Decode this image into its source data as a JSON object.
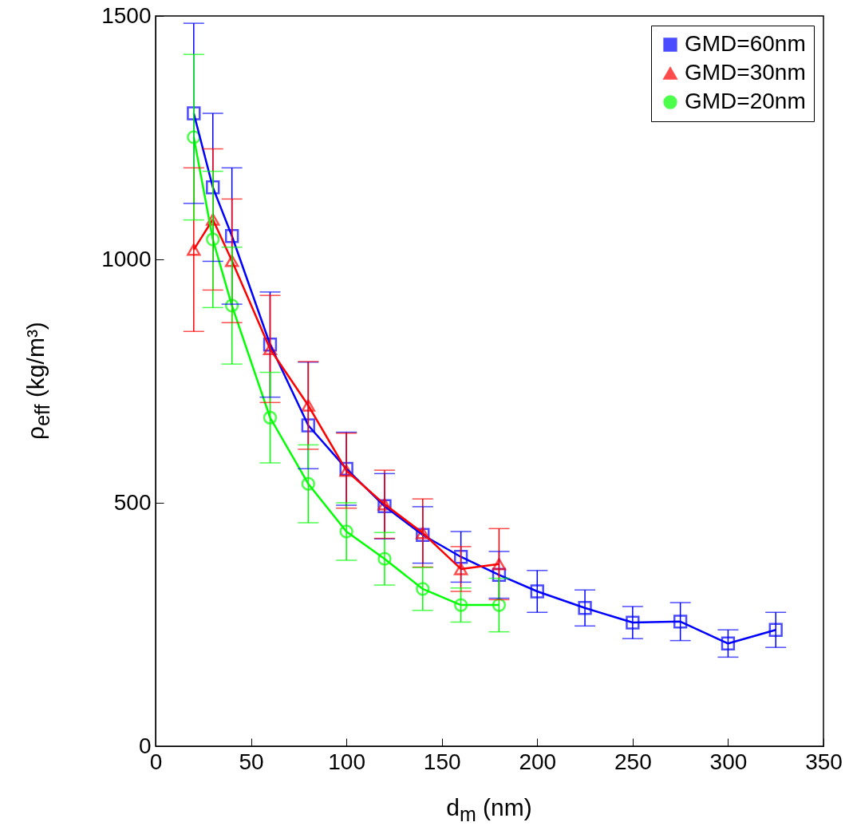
{
  "chart_data": {
    "type": "line",
    "xlabel": "d$_{m}$ (nm)",
    "ylabel": "ρ$_{eff}$ (kg/m³)",
    "xlim": [
      0,
      350
    ],
    "xticks": [
      0,
      50,
      100,
      150,
      200,
      250,
      300,
      350
    ],
    "ylim": [
      0,
      1500
    ],
    "yticks": [
      0,
      500,
      1000,
      1500
    ],
    "legend": "top right",
    "grid": false,
    "series": [
      {
        "name": "GMD=60nm",
        "color": "#0000ff",
        "marker": "square",
        "x": [
          20,
          30,
          40,
          60,
          80,
          100,
          120,
          140,
          160,
          180,
          200,
          225,
          250,
          275,
          300,
          325
        ],
        "values": [
          1300,
          1148,
          1048,
          825,
          659,
          570,
          493,
          434,
          389,
          352,
          318,
          284,
          254,
          256,
          211,
          239
        ],
        "errors": [
          185,
          152,
          140,
          108,
          [
            570,
            789
          ],
          75,
          67,
          58,
          52,
          48,
          43,
          37,
          33,
          39,
          28,
          36
        ]
      },
      {
        "name": "GMD=30nm",
        "color": "#ff0000",
        "marker": "triangle",
        "x": [
          20,
          30,
          40,
          60,
          80,
          100,
          120,
          140,
          160,
          180
        ],
        "values": [
          1020,
          1082,
          997,
          816,
          700,
          566,
          497,
          438,
          364,
          374
        ],
        "errors": [
          168,
          145,
          127,
          110,
          90,
          77,
          70,
          70,
          46,
          73
        ]
      },
      {
        "name": "GMD=20nm",
        "color": "#00ff00",
        "marker": "circle",
        "x": [
          20,
          30,
          40,
          60,
          80,
          100,
          120,
          140,
          160,
          180
        ],
        "values": [
          1251,
          1041,
          905,
          675,
          539,
          441,
          385,
          323,
          290,
          290
        ],
        "errors": [
          170,
          140,
          120,
          93,
          80,
          59,
          54,
          44,
          35,
          55
        ]
      }
    ]
  }
}
